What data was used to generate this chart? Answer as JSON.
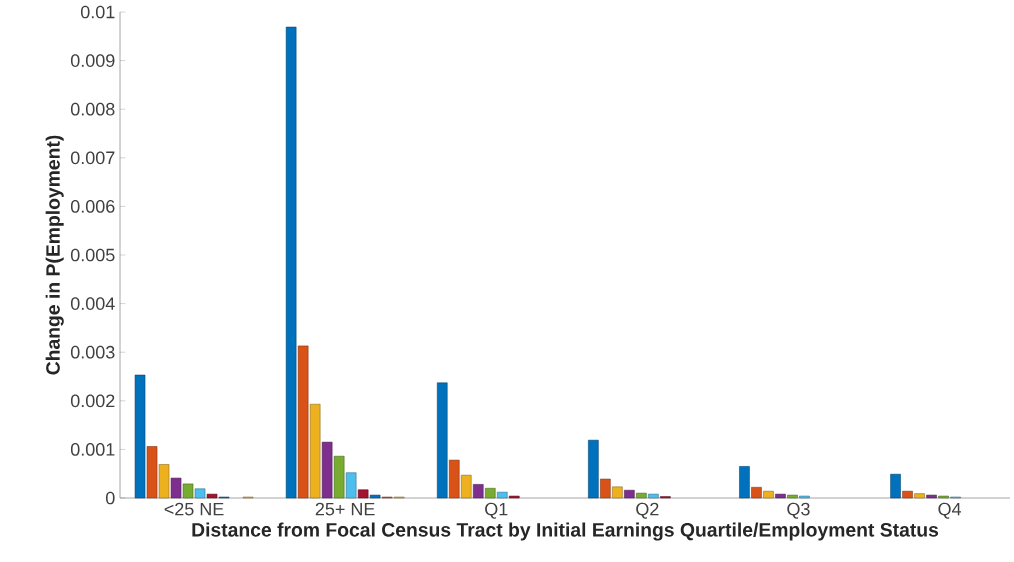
{
  "chart_data": {
    "type": "bar",
    "xlabel": "Distance from Focal Census Tract by Initial Earnings Quartile/Employment Status",
    "ylabel": "Change in P(Employment)",
    "categories": [
      "<25 NE",
      "25+ NE",
      "Q1",
      "Q2",
      "Q3",
      "Q4"
    ],
    "series": [
      {
        "color": "#0072bd",
        "values": [
          0.00253,
          0.00969,
          0.00237,
          0.00119,
          0.00065,
          0.00049
        ]
      },
      {
        "color": "#d95319",
        "values": [
          0.00106,
          0.00313,
          0.00078,
          0.00039,
          0.00022,
          0.00014
        ]
      },
      {
        "color": "#edb120",
        "values": [
          0.00069,
          0.00193,
          0.00047,
          0.00023,
          0.00014,
          9e-05
        ]
      },
      {
        "color": "#7e2f8e",
        "values": [
          0.00041,
          0.00115,
          0.00028,
          0.00016,
          8e-05,
          6e-05
        ]
      },
      {
        "color": "#77ac30",
        "values": [
          0.00029,
          0.00086,
          0.0002,
          0.0001,
          6e-05,
          4e-05
        ]
      },
      {
        "color": "#4dbeee",
        "values": [
          0.00019,
          0.00052,
          0.00012,
          8e-05,
          4e-05,
          2e-05
        ]
      },
      {
        "color": "#a2142f",
        "values": [
          8e-05,
          0.00017,
          4e-05,
          3e-05,
          null,
          null
        ]
      },
      {
        "color": "#0072bd",
        "values": [
          2e-05,
          6e-05,
          null,
          null,
          null,
          null
        ]
      },
      {
        "color": "#d95319",
        "values": [
          null,
          2e-05,
          null,
          null,
          null,
          null
        ]
      },
      {
        "color": "#edb120",
        "values": [
          2e-05,
          2e-05,
          null,
          null,
          null,
          null
        ]
      }
    ],
    "ylim": [
      0,
      0.01
    ],
    "yticks": [
      0,
      0.001,
      0.002,
      0.003,
      0.004,
      0.005,
      0.006,
      0.007,
      0.008,
      0.009,
      0.01
    ],
    "grid": false
  }
}
